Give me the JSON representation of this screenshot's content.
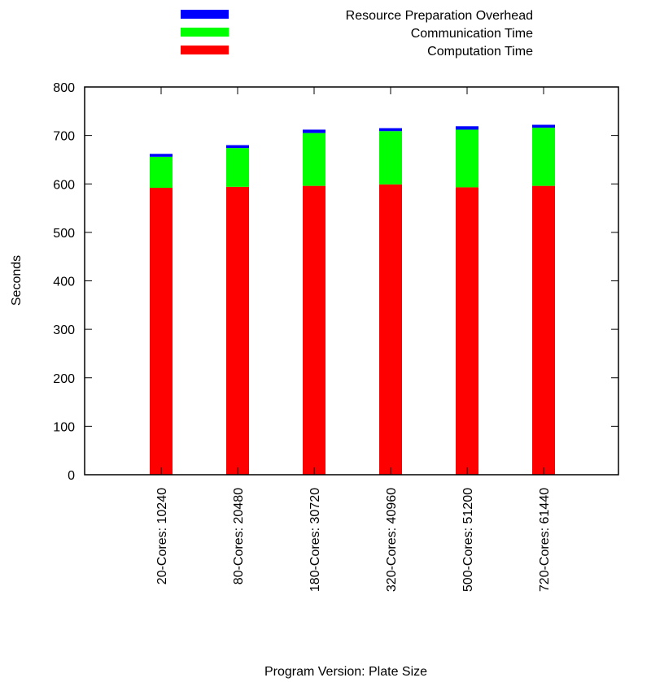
{
  "chart_data": {
    "type": "bar",
    "stacked": true,
    "title": "",
    "xlabel": "Program Version: Plate Size",
    "ylabel": "Seconds",
    "ylim": [
      0,
      800
    ],
    "yticks": [
      "0",
      "100",
      "200",
      "300",
      "400",
      "500",
      "600",
      "700",
      "800"
    ],
    "categories": [
      "20-Cores: 10240",
      "80-Cores: 20480",
      "180-Cores: 30720",
      "320-Cores: 40960",
      "500-Cores: 51200",
      "720-Cores: 61440"
    ],
    "series": [
      {
        "name": "Computation Time",
        "color": "#ff0000",
        "values": [
          592,
          594,
          596,
          599,
          593,
          596
        ]
      },
      {
        "name": "Communication Time",
        "color": "#00ff00",
        "values": [
          64,
          80,
          109,
          110,
          119,
          120
        ]
      },
      {
        "name": "Resource Preparation Overhead",
        "color": "#0000ff",
        "values": [
          6,
          6,
          7,
          6,
          7,
          6
        ]
      }
    ],
    "legend_order": [
      "Resource Preparation Overhead",
      "Communication Time",
      "Computation Time"
    ],
    "legend_position": "top",
    "grid": false
  }
}
